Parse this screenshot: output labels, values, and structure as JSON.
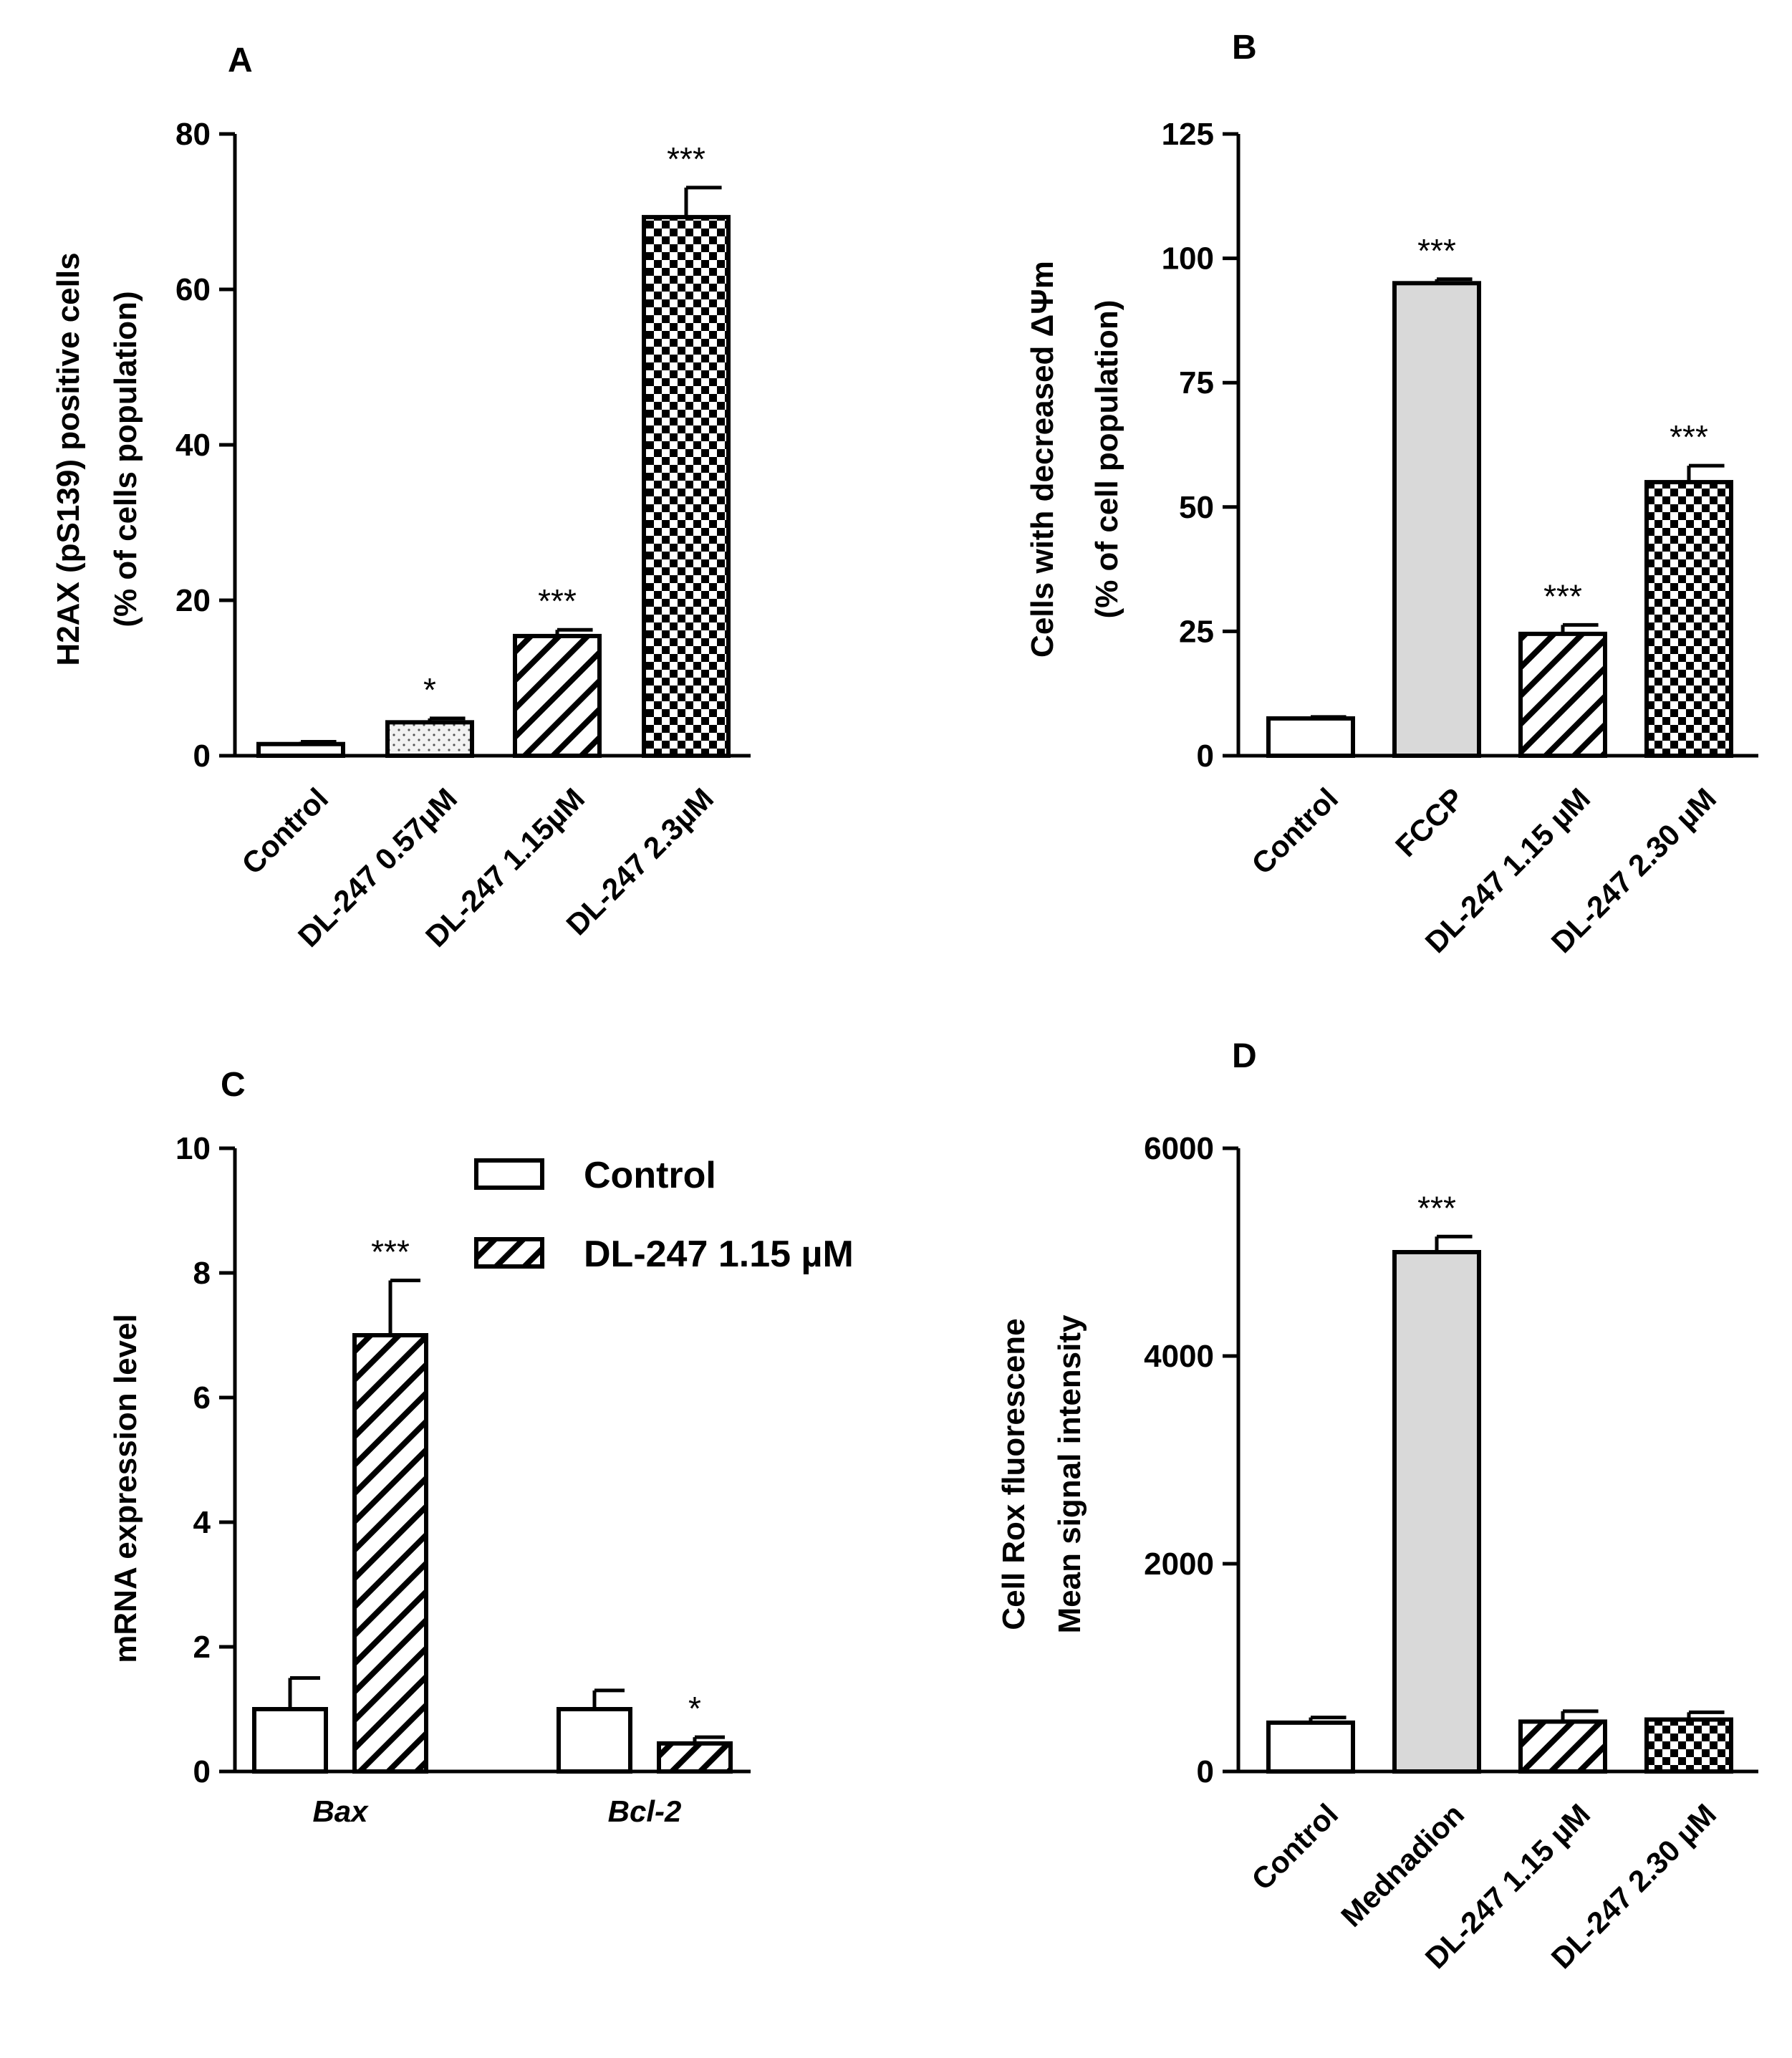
{
  "colors": {
    "ink": "#000000",
    "background": "#ffffff",
    "grey_fill": "#d9d9d9",
    "white_fill": "#ffffff"
  },
  "chart_data": [
    {
      "panel": "A",
      "type": "bar",
      "categories": [
        "Control",
        "DL-247 0.57µM",
        "DL-247 1.15µM",
        "DL-247 2.3µM"
      ],
      "values": [
        1.5,
        4.3,
        15.4,
        69.3
      ],
      "errors": [
        0.3,
        0.5,
        0.8,
        3.8
      ],
      "fills": [
        "white",
        "dots",
        "hatch",
        "checker"
      ],
      "significance": [
        "",
        "*",
        "***",
        "***"
      ],
      "ylabel_lines": [
        "H2AX (pS139) positive cells",
        "(% of cells population)"
      ],
      "ylim": [
        0,
        80
      ],
      "yticks": [
        0,
        20,
        40,
        60,
        80
      ]
    },
    {
      "panel": "B",
      "type": "bar",
      "categories": [
        "Control",
        "FCCP",
        "DL-247 1.15 µM",
        "DL-247 2.30 µM"
      ],
      "values": [
        7.5,
        95,
        24.5,
        55
      ],
      "errors": [
        0.3,
        0.8,
        1.8,
        3.3
      ],
      "fills": [
        "white",
        "grey",
        "hatch",
        "checker"
      ],
      "significance": [
        "",
        "***",
        "***",
        "***"
      ],
      "ylabel_lines": [
        "Cells with decreased ΔΨm",
        "(% of cell population)"
      ],
      "ylim": [
        0,
        125
      ],
      "yticks": [
        0,
        25,
        50,
        75,
        100,
        125
      ]
    },
    {
      "panel": "C",
      "type": "bar",
      "categories": [
        "Bax",
        "Bcl-2"
      ],
      "series": [
        {
          "name": "Control",
          "values": [
            1.0,
            1.0
          ],
          "errors": [
            0.5,
            0.3
          ],
          "fill": "white",
          "significance": [
            "",
            ""
          ]
        },
        {
          "name": "DL-247 1.15 µM",
          "values": [
            7.0,
            0.45
          ],
          "errors": [
            0.88,
            0.1
          ],
          "fill": "hatch",
          "significance": [
            "***",
            "*"
          ]
        }
      ],
      "ylabel_lines": [
        "mRNA expression level"
      ],
      "ylim": [
        0,
        10
      ],
      "yticks": [
        0,
        2,
        4,
        6,
        8,
        10
      ]
    },
    {
      "panel": "D",
      "type": "bar",
      "categories": [
        "Control",
        "Mednadion",
        "DL-247 1.15 µM",
        "DL-247 2.30 µM"
      ],
      "values": [
        470,
        5000,
        480,
        500
      ],
      "errors": [
        50,
        150,
        100,
        70
      ],
      "fills": [
        "white",
        "grey",
        "hatch",
        "checker"
      ],
      "significance": [
        "",
        "***",
        "",
        ""
      ],
      "ylabel_lines": [
        "Cell Rox fluorescene",
        "Mean signal intensity"
      ],
      "ylim": [
        0,
        6000
      ],
      "yticks": [
        0,
        2000,
        4000,
        6000
      ]
    }
  ]
}
